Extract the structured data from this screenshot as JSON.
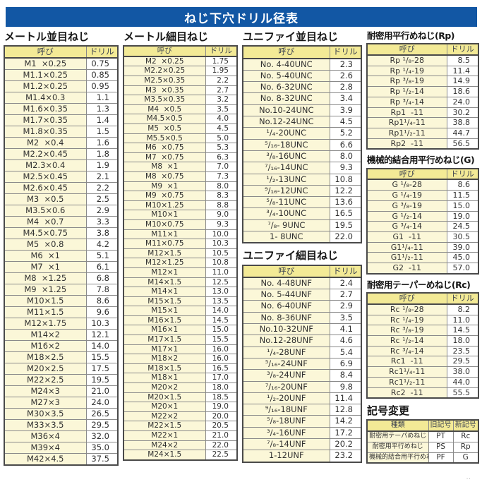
{
  "title": "ねじ下穴ドリル径表",
  "colors": {
    "title_bg": "#1257a4",
    "header_bg": "#f3ea96",
    "name_bg": "#fbf7d8",
    "drill_bg": "#ffffff",
    "border": "#8a8a8a",
    "border_strong": "#4a4a4a"
  },
  "col_headers": {
    "name": "呼び",
    "drill": "ドリル"
  },
  "footer_mark": "‥",
  "tables": {
    "metric_coarse": {
      "heading": "メートル並目ねじ",
      "rows": [
        [
          "M1  ×0.25",
          "0.75"
        ],
        [
          "M1.1×0.25",
          "0.85"
        ],
        [
          "M1.2×0.25",
          "0.95"
        ],
        [
          "M1.4×0.3",
          "1.1"
        ],
        [
          "M1.6×0.35",
          "1.3"
        ],
        [
          "M1.7×0.35",
          "1.4"
        ],
        [
          "M1.8×0.35",
          "1.5"
        ],
        [
          "M2  ×0.4",
          "1.6"
        ],
        [
          "M2.2×0.45",
          "1.8"
        ],
        [
          "M2.3×0.4",
          "1.9"
        ],
        [
          "M2.5×0.45",
          "2.1"
        ],
        [
          "M2.6×0.45",
          "2.2"
        ],
        [
          "M3  ×0.5",
          "2.5"
        ],
        [
          "M3.5×0.6",
          "2.9"
        ],
        [
          "M4  ×0.7",
          "3.3"
        ],
        [
          "M4.5×0.75",
          "3.8"
        ],
        [
          "M5  ×0.8",
          "4.2"
        ],
        [
          "M6  ×1",
          "5.1"
        ],
        [
          "M7  ×1",
          "6.1"
        ],
        [
          "M8  ×1.25",
          "6.8"
        ],
        [
          "M9  ×1.25",
          "7.8"
        ],
        [
          "M10×1.5",
          "8.6"
        ],
        [
          "M11×1.5",
          "9.6"
        ],
        [
          "M12×1.75",
          "10.3"
        ],
        [
          "M14×2",
          "12.1"
        ],
        [
          "M16×2",
          "14.0"
        ],
        [
          "M18×2.5",
          "15.5"
        ],
        [
          "M20×2.5",
          "17.5"
        ],
        [
          "M22×2.5",
          "19.5"
        ],
        [
          "M24×3",
          "21.0"
        ],
        [
          "M27×3",
          "24.0"
        ],
        [
          "M30×3.5",
          "26.5"
        ],
        [
          "M33×3.5",
          "29.5"
        ],
        [
          "M36×4",
          "32.0"
        ],
        [
          "M39×4",
          "35.0"
        ],
        [
          "M42×4.5",
          "37.5"
        ]
      ]
    },
    "metric_fine": {
      "heading": "メートル細目ねじ",
      "rows": [
        [
          "M2  ×0.25",
          "1.75"
        ],
        [
          "M2.2×0.25",
          "1.95"
        ],
        [
          "M2.5×0.35",
          "2.2"
        ],
        [
          "M3  ×0.35",
          "2.7"
        ],
        [
          "M3.5×0.35",
          "3.2"
        ],
        [
          "M4  ×0.5",
          "3.5"
        ],
        [
          "M4.5×0.5",
          "4.0"
        ],
        [
          "M5  ×0.5",
          "4.5"
        ],
        [
          "M5.5×0.5",
          "5.0"
        ],
        [
          "M6  ×0.75",
          "5.3"
        ],
        [
          "M7  ×0.75",
          "6.3"
        ],
        [
          "M8  ×1",
          "7.0"
        ],
        [
          "M8  ×0.75",
          "7.3"
        ],
        [
          "M9  ×1",
          "8.0"
        ],
        [
          "M9  ×0.75",
          "8.3"
        ],
        [
          "M10×1.25",
          "8.8"
        ],
        [
          "M10×1",
          "9.0"
        ],
        [
          "M10×0.75",
          "9.3"
        ],
        [
          "M11×1",
          "10.0"
        ],
        [
          "M11×0.75",
          "10.3"
        ],
        [
          "M12×1.5",
          "10.5"
        ],
        [
          "M12×1.25",
          "10.8"
        ],
        [
          "M12×1",
          "11.0"
        ],
        [
          "M14×1.5",
          "12.5"
        ],
        [
          "M14×1",
          "13.0"
        ],
        [
          "M15×1.5",
          "13.5"
        ],
        [
          "M15×1",
          "14.0"
        ],
        [
          "M16×1.5",
          "14.5"
        ],
        [
          "M16×1",
          "15.0"
        ],
        [
          "M17×1.5",
          "15.5"
        ],
        [
          "M17×1",
          "16.0"
        ],
        [
          "M18×2",
          "16.0"
        ],
        [
          "M18×1.5",
          "16.5"
        ],
        [
          "M18×1",
          "17.0"
        ],
        [
          "M20×2",
          "18.0"
        ],
        [
          "M20×1.5",
          "18.5"
        ],
        [
          "M20×1",
          "19.0"
        ],
        [
          "M22×2",
          "20.0"
        ],
        [
          "M22×1.5",
          "20.5"
        ],
        [
          "M22×1",
          "21.0"
        ],
        [
          "M24×2",
          "22.0"
        ],
        [
          "M24×1.5",
          "22.5"
        ]
      ]
    },
    "unified_coarse": {
      "heading": "ユニファイ並目ねじ",
      "rows": [
        [
          "No. 4-40UNC",
          "2.3"
        ],
        [
          "No. 5-40UNC",
          "2.6"
        ],
        [
          "No. 6-32UNC",
          "2.8"
        ],
        [
          "No. 8-32UNC",
          "3.4"
        ],
        [
          "No.10-24UNC",
          "3.9"
        ],
        [
          "No.12-24UNC",
          "4.5"
        ],
        [
          "¹/₄-20UNC",
          "5.2"
        ],
        [
          "⁵/₁₆-18UNC",
          "6.6"
        ],
        [
          "³/₈-16UNC",
          "8.0"
        ],
        [
          "⁷/₁₆-14UNC",
          "9.3"
        ],
        [
          "¹/₂-13UNC",
          "10.8"
        ],
        [
          "⁹/₁₆-12UNC",
          "12.2"
        ],
        [
          "⁵/₈-11UNC",
          "13.6"
        ],
        [
          "³/₄-10UNC",
          "16.5"
        ],
        [
          "⁷/₈- 9UNC",
          "19.5"
        ],
        [
          "1- 8UNC",
          "22.0"
        ]
      ]
    },
    "unified_fine": {
      "heading": "ユニファイ細目ねじ",
      "rows": [
        [
          "No. 4-48UNF",
          "2.4"
        ],
        [
          "No. 5-44UNF",
          "2.7"
        ],
        [
          "No. 6-40UNF",
          "2.9"
        ],
        [
          "No. 8-36UNF",
          "3.5"
        ],
        [
          "No.10-32UNF",
          "4.1"
        ],
        [
          "No.12-28UNF",
          "4.6"
        ],
        [
          "¹/₄-28UNF",
          "5.4"
        ],
        [
          "⁵/₁₆-24UNF",
          "6.9"
        ],
        [
          "³/₈-24UNF",
          "8.4"
        ],
        [
          "⁷/₁₆-20UNF",
          "9.8"
        ],
        [
          "¹/₂-20UNF",
          "11.4"
        ],
        [
          "⁹/₁₆-18UNF",
          "12.8"
        ],
        [
          "⁵/₈-18UNF",
          "14.2"
        ],
        [
          "³/₄-16UNF",
          "17.2"
        ],
        [
          "⁷/₈-14UNF",
          "20.2"
        ],
        [
          "1-12UNF",
          "23.2"
        ]
      ]
    },
    "rp": {
      "heading": "耐密用平行めねじ(Rp)",
      "rows": [
        [
          "Rp ¹/₈-28",
          "8.5"
        ],
        [
          "Rp ¹/₄-19",
          "11.4"
        ],
        [
          "Rp ³/₈-19",
          "14.9"
        ],
        [
          "Rp ¹/₂-14",
          "18.6"
        ],
        [
          "Rp ³/₄-14",
          "24.0"
        ],
        [
          "Rp1  -11",
          "30.2"
        ],
        [
          "Rp1¹/₄-11",
          "38.8"
        ],
        [
          "Rp1¹/₂-11",
          "44.7"
        ],
        [
          "Rp2  -11",
          "56.5"
        ]
      ]
    },
    "g": {
      "heading": "機械的結合用平行めねじ(G)",
      "rows": [
        [
          "G ¹/₈-28",
          "8.6"
        ],
        [
          "G ¹/₄-19",
          "11.5"
        ],
        [
          "G ³/₈-19",
          "15.0"
        ],
        [
          "G ¹/₂-14",
          "19.0"
        ],
        [
          "G ³/₄-14",
          "24.5"
        ],
        [
          "G1  -11",
          "30.5"
        ],
        [
          "G1¹/₄-11",
          "39.0"
        ],
        [
          "G1¹/₂-11",
          "45.0"
        ],
        [
          "G2  -11",
          "57.0"
        ]
      ]
    },
    "rc": {
      "heading": "耐密用テーパーめねじ(Rc)",
      "rows": [
        [
          "Rc ¹/₈-28",
          "8.2"
        ],
        [
          "Rc ¹/₄-19",
          "11.0"
        ],
        [
          "Rc ³/₈-19",
          "14.5"
        ],
        [
          "Rc ¹/₂-14",
          "18.0"
        ],
        [
          "Rc ³/₄-14",
          "23.5"
        ],
        [
          "Rc1  -11",
          "29.5"
        ],
        [
          "Rc1¹/₄-11",
          "38.0"
        ],
        [
          "Rc1¹/₂-11",
          "44.0"
        ],
        [
          "Rc2  -11",
          "55.5"
        ]
      ]
    },
    "symbol_change": {
      "heading": "記号変更",
      "headers": [
        "種類",
        "旧記号",
        "新記号"
      ],
      "rows": [
        [
          "耐密用テーパめねじ",
          "PT",
          "Rc"
        ],
        [
          "耐密用平行めねじ",
          "PS",
          "Rp"
        ],
        [
          "機械的結合用平行めねじ",
          "PF",
          "G"
        ]
      ]
    }
  }
}
